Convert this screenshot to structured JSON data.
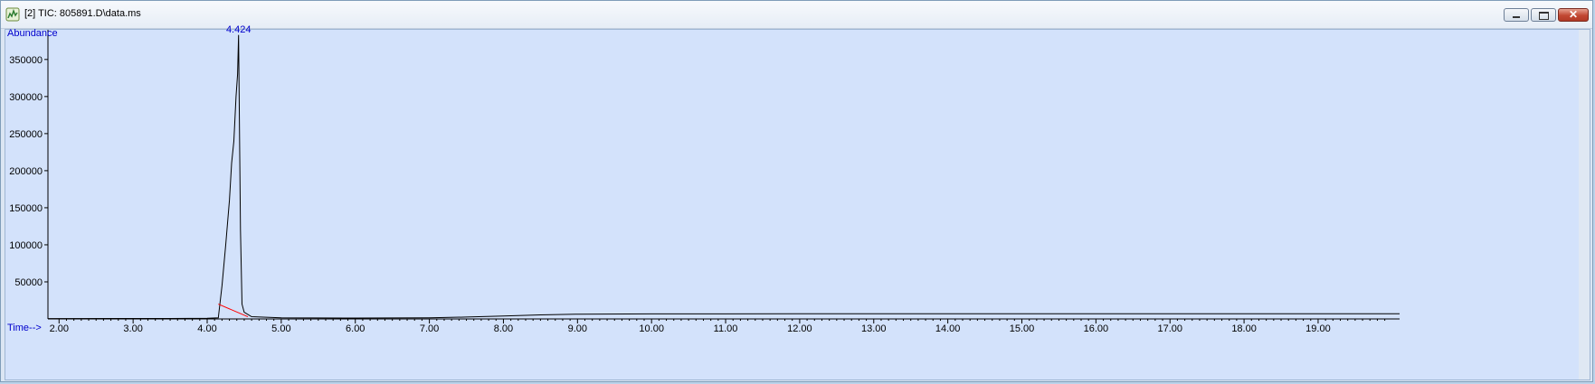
{
  "window": {
    "title": "[2] TIC: 805891.D\\data.ms",
    "icon": "chromatogram-app-icon",
    "controls": {
      "minimize_icon": "minimize-icon",
      "maximize_icon": "restore-icon",
      "close_icon": "close-icon",
      "close_glyph": "✕"
    }
  },
  "chart_data": {
    "type": "line",
    "ylabel": "Abundance",
    "xlabel": "Time-->",
    "xlim": [
      1.85,
      20.1
    ],
    "ylim": [
      0,
      390000
    ],
    "x_ticks": [
      "2.00",
      "3.00",
      "4.00",
      "5.00",
      "6.00",
      "7.00",
      "8.00",
      "9.00",
      "10.00",
      "11.00",
      "12.00",
      "13.00",
      "14.00",
      "15.00",
      "16.00",
      "17.00",
      "18.00",
      "19.00"
    ],
    "y_ticks": [
      "50000",
      "100000",
      "150000",
      "200000",
      "250000",
      "300000",
      "350000"
    ],
    "grid": false,
    "peak_labels": [
      {
        "x": 4.424,
        "y": 383000,
        "label": "4.424"
      }
    ],
    "series": [
      {
        "x": [
          1.85,
          3.5,
          4.0,
          4.15,
          4.2,
          4.25,
          4.3,
          4.33,
          4.36,
          4.39,
          4.41,
          4.424,
          4.44,
          4.45,
          4.47,
          4.5,
          4.6,
          5.0,
          6.0,
          7.0,
          7.5,
          8.0,
          8.5,
          9.0,
          10.0,
          11.0,
          12.0,
          13.0,
          14.0,
          15.0,
          16.0,
          17.0,
          18.0,
          19.0,
          20.1
        ],
        "y": [
          500,
          600,
          800,
          1500,
          45000,
          100000,
          160000,
          210000,
          240000,
          300000,
          330000,
          383000,
          220000,
          120000,
          20000,
          9000,
          3000,
          1500,
          1200,
          1500,
          2500,
          4000,
          5500,
          6500,
          6800,
          6800,
          6900,
          7000,
          7000,
          7000,
          7000,
          7000,
          7000,
          7100,
          7100
        ],
        "color": "#000000"
      }
    ],
    "baseline": {
      "x": [
        4.15,
        4.55
      ],
      "y": [
        20000,
        3000
      ],
      "color": "#ff0000"
    },
    "axis_title_color": "#0000cc"
  }
}
